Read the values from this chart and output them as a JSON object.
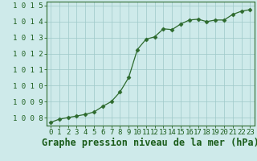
{
  "x": [
    0,
    1,
    2,
    3,
    4,
    5,
    6,
    7,
    8,
    9,
    10,
    11,
    12,
    13,
    14,
    15,
    16,
    17,
    18,
    19,
    20,
    21,
    22,
    23
  ],
  "y": [
    1007.7,
    1007.9,
    1008.0,
    1008.1,
    1008.2,
    1008.35,
    1008.7,
    1009.0,
    1009.6,
    1010.5,
    1012.25,
    1012.9,
    1013.05,
    1013.55,
    1013.5,
    1013.85,
    1014.1,
    1014.15,
    1014.0,
    1014.1,
    1014.1,
    1014.45,
    1014.65,
    1014.75
  ],
  "ylim": [
    1007.5,
    1015.25
  ],
  "yticks": [
    1008,
    1009,
    1010,
    1011,
    1012,
    1013,
    1014,
    1015
  ],
  "xticks": [
    0,
    1,
    2,
    3,
    4,
    5,
    6,
    7,
    8,
    9,
    10,
    11,
    12,
    13,
    14,
    15,
    16,
    17,
    18,
    19,
    20,
    21,
    22,
    23
  ],
  "xlabel": "Graphe pression niveau de la mer (hPa)",
  "line_color": "#2d6a2d",
  "marker_color": "#2d6a2d",
  "bg_color": "#ceeaea",
  "grid_color": "#9ec8c8",
  "tick_color": "#2d6a2d",
  "label_color": "#1a5c1a",
  "tick_fontsize": 6.5,
  "xlabel_fontsize": 8.5
}
